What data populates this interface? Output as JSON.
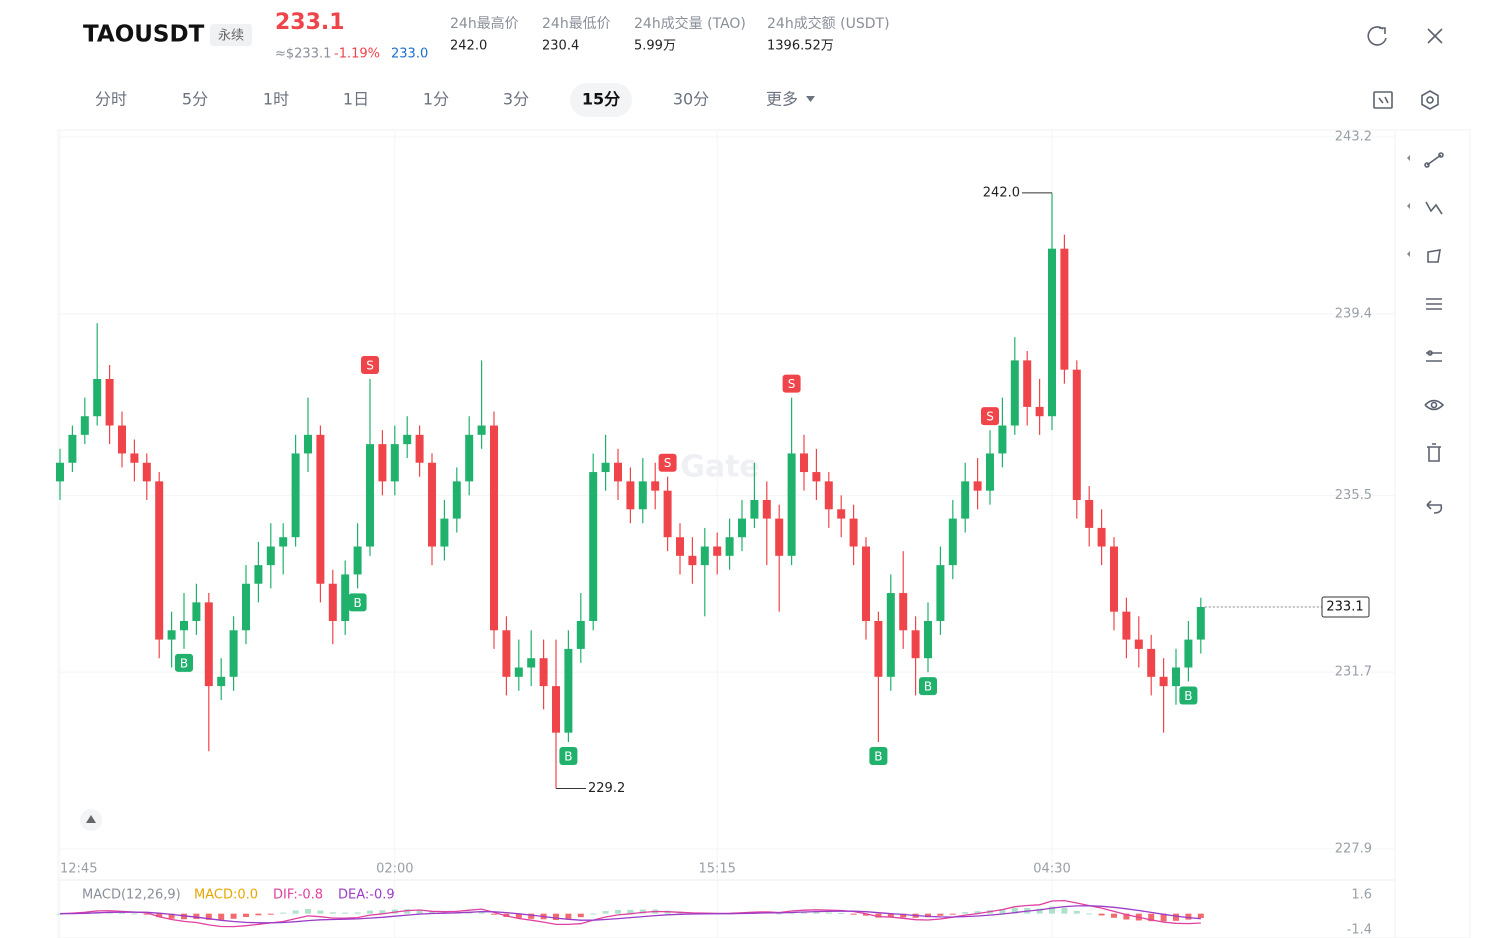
{
  "header": {
    "symbol": "TAOUSDT",
    "badge": "永续",
    "price": "233.1",
    "usd_price": "≈$233.1",
    "change": "-1.19%",
    "mark_price": "233.0",
    "stats": [
      {
        "label": "24h最高价",
        "value": "242.0"
      },
      {
        "label": "24h最低价",
        "value": "230.4"
      },
      {
        "label": "24h成交量 (TAO)",
        "value": "5.99万"
      },
      {
        "label": "24h成交额 (USDT)",
        "value": "1396.52万"
      }
    ]
  },
  "tabs": [
    "分时",
    "5分",
    "1时",
    "1日",
    "1分",
    "3分",
    "15分",
    "30分",
    "更多"
  ],
  "chart_data": {
    "type": "candlestick",
    "categories": [
      "12:45",
      null,
      null,
      null,
      null,
      null,
      null,
      null,
      null,
      null,
      null,
      null,
      null,
      null,
      null,
      null,
      null,
      null,
      null,
      null,
      null,
      null,
      null,
      null,
      null,
      null,
      null,
      "02:00",
      null,
      null,
      null,
      null,
      null,
      null,
      null,
      null,
      null,
      null,
      null,
      null,
      null,
      null,
      null,
      null,
      null,
      null,
      null,
      null,
      null,
      null,
      null,
      null,
      null,
      "15:15",
      null,
      null,
      null,
      null,
      null,
      null,
      null,
      null,
      null,
      null,
      null,
      null,
      null,
      null,
      null,
      null,
      null,
      null,
      null,
      null,
      null,
      null,
      null,
      null,
      null,
      null,
      "04:30",
      null,
      null,
      null,
      null,
      null,
      null,
      null,
      null,
      null,
      null,
      null,
      null
    ],
    "open": [
      235.8,
      236.2,
      236.8,
      237.2,
      238.0,
      237.0,
      236.4,
      236.2,
      235.8,
      232.4,
      232.6,
      232.8,
      233.2,
      231.4,
      231.6,
      232.6,
      233.6,
      234.0,
      234.4,
      234.6,
      236.4,
      236.8,
      233.6,
      232.8,
      233.8,
      234.4,
      236.6,
      235.8,
      236.6,
      236.8,
      236.2,
      234.4,
      235.0,
      235.8,
      236.8,
      237.0,
      232.6,
      231.6,
      231.8,
      232.0,
      231.4,
      230.4,
      232.2,
      232.8,
      236.0,
      236.2,
      235.8,
      235.2,
      235.8,
      235.6,
      234.6,
      234.2,
      234.0,
      234.4,
      234.2,
      234.6,
      235.0,
      235.4,
      235.0,
      234.2,
      236.4,
      236.0,
      235.8,
      235.2,
      235.0,
      234.4,
      232.8,
      231.6,
      233.4,
      232.6,
      232.0,
      232.8,
      234.0,
      235.0,
      235.8,
      235.6,
      236.4,
      237.0,
      238.4,
      237.4,
      237.2,
      240.8,
      238.2,
      235.4,
      234.8,
      234.4,
      233.0,
      232.4,
      232.2,
      231.6,
      231.4,
      231.8,
      232.4
    ],
    "high": [
      236.5,
      237.0,
      237.6,
      239.2,
      238.3,
      237.3,
      236.7,
      236.4,
      236.0,
      233.0,
      233.4,
      233.6,
      233.4,
      232.0,
      232.9,
      234.0,
      234.5,
      234.9,
      234.9,
      236.8,
      237.6,
      237.0,
      233.9,
      234.1,
      234.9,
      238.0,
      236.9,
      237.0,
      237.2,
      237.0,
      236.4,
      235.4,
      236.1,
      237.2,
      238.4,
      237.3,
      232.9,
      232.4,
      232.6,
      232.4,
      232.4,
      232.6,
      233.4,
      236.4,
      236.8,
      236.5,
      236.1,
      236.3,
      236.2,
      235.9,
      234.9,
      234.6,
      234.8,
      234.7,
      235.0,
      235.4,
      236.2,
      235.8,
      235.3,
      237.6,
      236.8,
      236.5,
      236.0,
      235.5,
      235.3,
      234.6,
      233.0,
      233.8,
      234.3,
      232.9,
      233.2,
      234.4,
      235.4,
      236.2,
      236.3,
      236.9,
      237.6,
      238.9,
      238.6,
      238.0,
      242.0,
      241.1,
      238.4,
      235.7,
      235.2,
      234.6,
      233.3,
      232.9,
      232.5,
      232.0,
      232.2,
      232.8,
      233.3
    ],
    "low": [
      235.4,
      236.0,
      236.6,
      237.0,
      236.6,
      236.1,
      235.8,
      235.4,
      232.0,
      231.8,
      232.2,
      232.5,
      230.0,
      231.1,
      231.3,
      232.3,
      233.2,
      233.5,
      233.8,
      234.4,
      236.0,
      233.2,
      232.3,
      232.5,
      233.5,
      234.2,
      235.5,
      235.5,
      236.3,
      235.9,
      234.0,
      234.1,
      234.7,
      235.5,
      236.5,
      232.2,
      231.2,
      231.3,
      231.4,
      230.9,
      229.2,
      230.2,
      231.9,
      232.6,
      235.6,
      235.4,
      234.9,
      234.9,
      235.2,
      234.3,
      233.8,
      233.6,
      232.9,
      233.8,
      233.9,
      234.3,
      234.8,
      234.0,
      233.0,
      234.0,
      235.6,
      235.4,
      234.8,
      234.6,
      234.0,
      232.4,
      230.2,
      231.3,
      232.2,
      231.2,
      231.7,
      232.5,
      233.7,
      234.7,
      235.2,
      235.3,
      236.1,
      236.8,
      237.0,
      236.8,
      236.9,
      237.9,
      235.0,
      234.4,
      234.0,
      232.6,
      232.0,
      231.8,
      231.2,
      230.4,
      231.0,
      231.5,
      232.1
    ],
    "close": [
      236.2,
      236.8,
      237.2,
      238.0,
      237.0,
      236.4,
      236.2,
      235.8,
      232.4,
      232.6,
      232.8,
      233.2,
      231.4,
      231.6,
      232.6,
      233.6,
      234.0,
      234.4,
      234.6,
      236.4,
      236.8,
      233.6,
      232.8,
      233.8,
      234.4,
      236.6,
      235.8,
      236.6,
      236.8,
      236.2,
      234.4,
      235.0,
      235.8,
      236.8,
      237.0,
      232.6,
      231.6,
      231.8,
      232.0,
      231.4,
      230.4,
      232.2,
      232.8,
      236.0,
      236.2,
      235.8,
      235.2,
      235.8,
      235.6,
      234.6,
      234.2,
      234.0,
      234.4,
      234.2,
      234.6,
      235.0,
      235.4,
      235.0,
      234.2,
      236.4,
      236.0,
      235.8,
      235.2,
      235.0,
      234.4,
      232.8,
      231.6,
      233.4,
      232.6,
      232.0,
      232.8,
      234.0,
      235.0,
      235.8,
      235.6,
      236.4,
      237.0,
      238.4,
      237.4,
      237.2,
      240.8,
      238.2,
      235.4,
      234.8,
      234.4,
      233.0,
      232.4,
      232.2,
      231.6,
      231.4,
      231.8,
      232.4,
      233.1
    ],
    "up_color": "#20b26c",
    "down_color": "#ef454a",
    "ylim": [
      227.9,
      243.2
    ],
    "yticks": [
      227.9,
      231.7,
      235.5,
      239.4,
      243.2
    ],
    "grid": true,
    "max_label": "242.0",
    "min_label": "229.2",
    "last_price_label": "233.1",
    "signals": [
      "B",
      "B",
      "S",
      "B",
      "S",
      "S",
      "B",
      "B",
      "S",
      "B"
    ],
    "watermark": "Gate",
    "macd": {
      "title": "MACD(12,26,9)",
      "macd_label": "MACD:0.0",
      "dif_label": "DIF:-0.8",
      "dea_label": "DEA:-0.9",
      "ylim": [
        -1.4,
        1.6
      ],
      "yticks": [
        1.6,
        -1.4
      ],
      "dif_color": "#e040a0",
      "dea_color": "#9c3cc8"
    }
  }
}
